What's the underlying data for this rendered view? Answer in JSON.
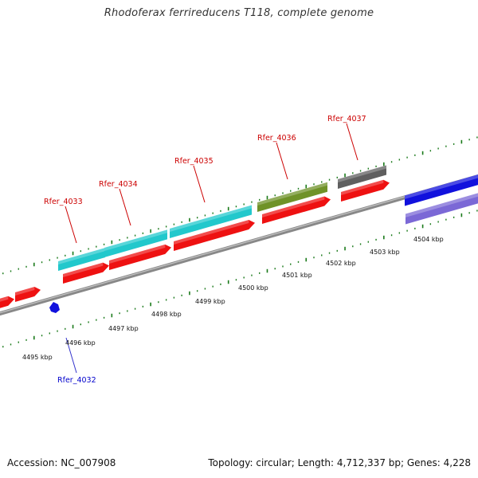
{
  "header": {
    "title": "Rhodoferax ferrireducens T118, complete genome"
  },
  "footer": {
    "accession": "Accession: NC_007908",
    "summary": "Topology: circular; Length: 4,712,337 bp; Genes: 4,228"
  },
  "colors": {
    "backbone": "#8a8a8a",
    "ticks": "#1a7a1a",
    "cds_forward": "#ee1111",
    "gene_cyan": "#22c8cc",
    "gene_olive": "#6f9228",
    "gene_gray": "#5f5f5f",
    "gene_blue": "#1111dd",
    "gene_lavender": "#7b68d6",
    "label_red": "#cc0000",
    "label_blue": "#0000cc"
  },
  "scale": {
    "unit": "kbp",
    "labels": [
      "4495 kbp",
      "4496 kbp",
      "4497 kbp",
      "4498 kbp",
      "4499 kbp",
      "4500 kbp",
      "4501 kbp",
      "4502 kbp",
      "4503 kbp",
      "4504 kbp"
    ]
  },
  "gene_labels": [
    {
      "name": "Rfer_4032",
      "color": "label_blue"
    },
    {
      "name": "Rfer_4033",
      "color": "label_red"
    },
    {
      "name": "Rfer_4034",
      "color": "label_red"
    },
    {
      "name": "Rfer_4035",
      "color": "label_red"
    },
    {
      "name": "Rfer_4036",
      "color": "label_red"
    },
    {
      "name": "Rfer_4037",
      "color": "label_red"
    }
  ]
}
